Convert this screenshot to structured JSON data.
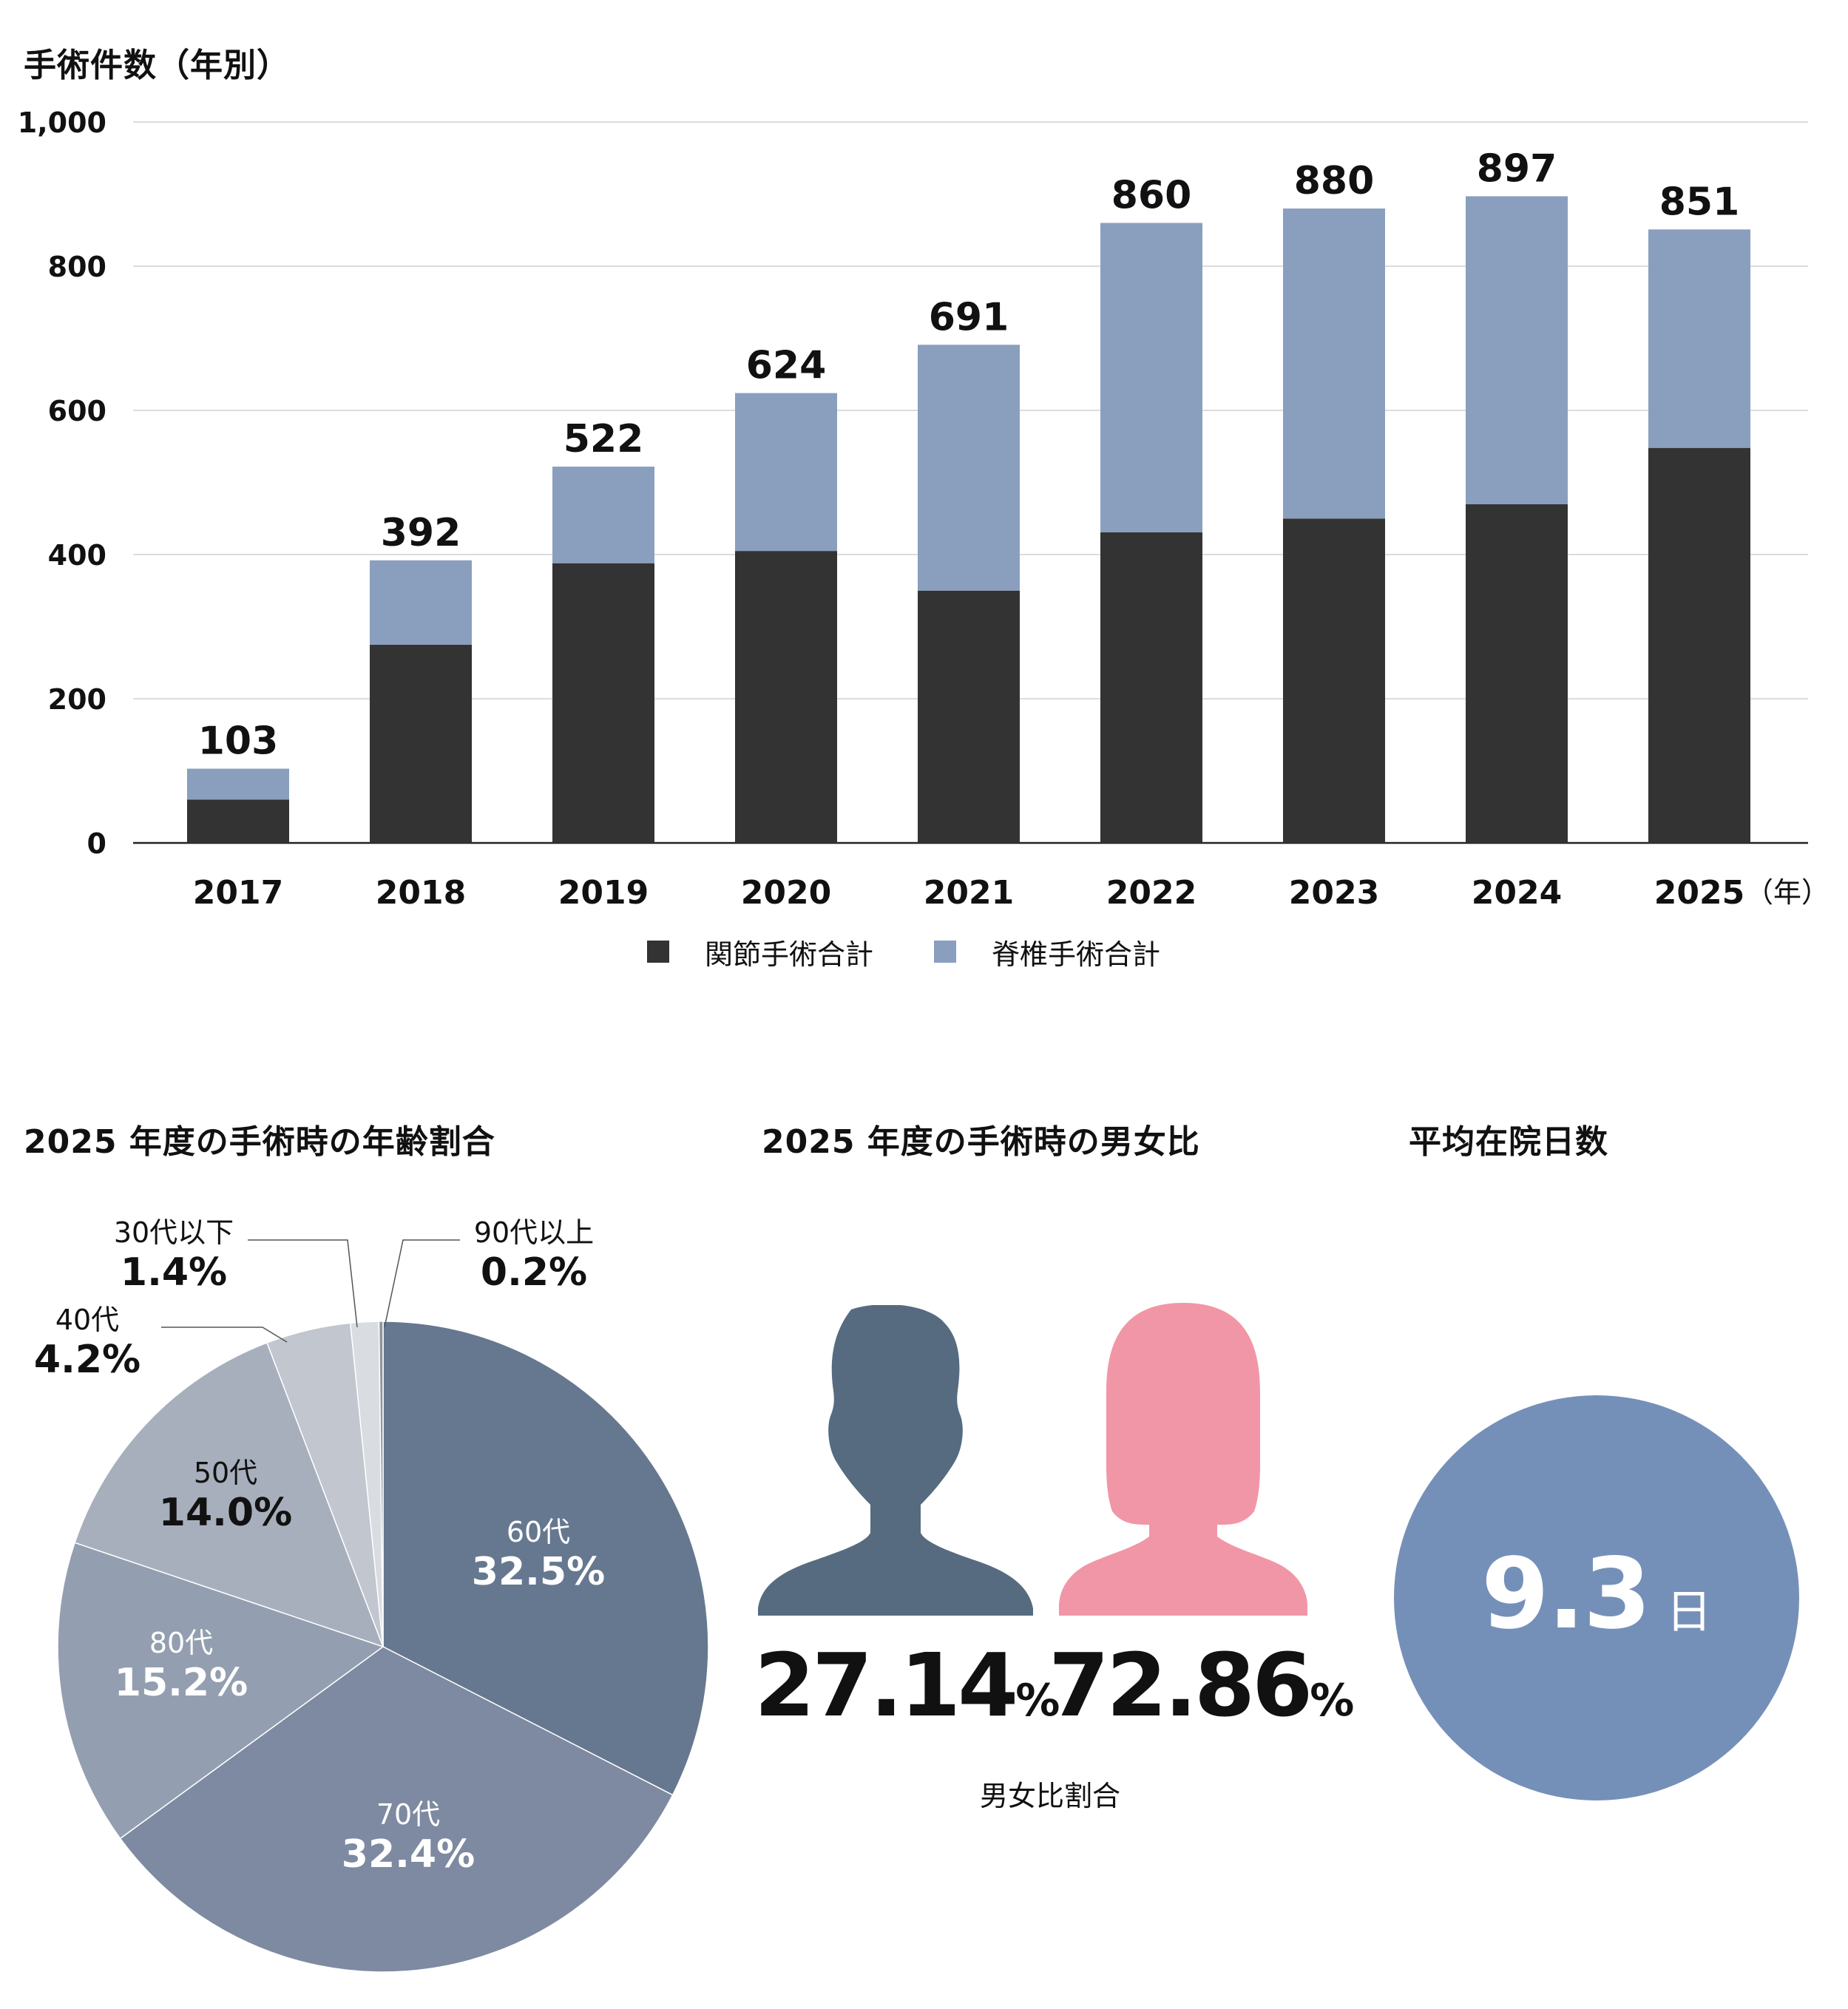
{
  "bar_section": {
    "title": "手術件数（年別）",
    "x_unit": "（年）"
  },
  "pie_section": {
    "title": "2025 年度の手術時の年齢割合"
  },
  "gender_section": {
    "title": "2025 年度の手術時の男女比",
    "male_value": "27.14",
    "female_value": "72.86",
    "percent_sign": "%",
    "caption": "男女比割合",
    "colors": {
      "male": "#566b80",
      "female": "#f196a7"
    }
  },
  "stay_section": {
    "title": "平均在院日数",
    "value": "9.3",
    "unit": "日",
    "color": "#7590b8"
  },
  "chart_data": [
    {
      "type": "bar",
      "stacked": true,
      "title": "手術件数（年別）",
      "xlabel": "",
      "ylabel": "",
      "categories": [
        "2017",
        "2018",
        "2019",
        "2020",
        "2021",
        "2022",
        "2023",
        "2024",
        "2025"
      ],
      "series": [
        {
          "name": "関節手術合計",
          "color": "#333333",
          "values": [
            60,
            275,
            388,
            405,
            350,
            431,
            450,
            470,
            548
          ]
        },
        {
          "name": "脊椎手術合計",
          "color": "#8a9fbe",
          "values": [
            43,
            117,
            134,
            219,
            341,
            429,
            430,
            427,
            303
          ]
        }
      ],
      "totals": [
        103,
        392,
        522,
        624,
        691,
        860,
        880,
        897,
        851
      ],
      "ylim": [
        0,
        1000
      ],
      "yticks": [
        0,
        200,
        400,
        600,
        800,
        1000
      ],
      "ytick_labels": [
        "0",
        "200",
        "400",
        "600",
        "800",
        "1,000"
      ],
      "grid": true,
      "legend": "bottom"
    },
    {
      "type": "pie",
      "title": "2025 年度の手術時の年齢割合",
      "slices": [
        {
          "label": "60代",
          "value": 32.5,
          "display": "32.5%",
          "color": "#66788f"
        },
        {
          "label": "70代",
          "value": 32.4,
          "display": "32.4%",
          "color": "#7d8aa1"
        },
        {
          "label": "80代",
          "value": 15.2,
          "display": "15.2%",
          "color": "#939fb0"
        },
        {
          "label": "50代",
          "value": 14.0,
          "display": "14.0%",
          "color": "#a8afbc"
        },
        {
          "label": "40代",
          "value": 4.2,
          "display": "4.2%",
          "color": "#c1c6cf"
        },
        {
          "label": "30代以下",
          "value": 1.4,
          "display": "1.4%",
          "color": "#d9dce1"
        },
        {
          "label": "90代以上",
          "value": 0.2,
          "display": "0.2%",
          "color": "#8e95a0"
        }
      ]
    }
  ]
}
